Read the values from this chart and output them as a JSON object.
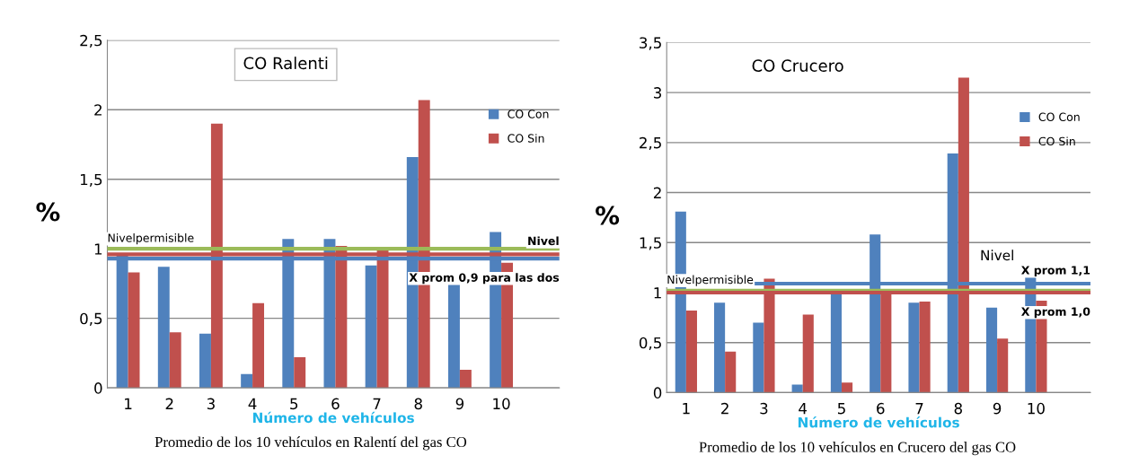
{
  "chart_data": [
    {
      "type": "bar",
      "title": "CO Ralenti",
      "xlabel": "Número de vehículos",
      "ylabel": "%",
      "categories": [
        "1",
        "2",
        "3",
        "4",
        "5",
        "6",
        "7",
        "8",
        "9",
        "10"
      ],
      "series": [
        {
          "name": "CO Con",
          "color": "#4f81bd",
          "values": [
            0.95,
            0.87,
            0.39,
            0.1,
            1.07,
            1.07,
            0.88,
            1.66,
            0.75,
            1.12
          ]
        },
        {
          "name": "CO Sin",
          "color": "#c0504d",
          "values": [
            0.83,
            0.4,
            1.9,
            0.61,
            0.22,
            1.02,
            0.99,
            2.07,
            0.13,
            0.9
          ]
        }
      ],
      "ylim": [
        0,
        2.5
      ],
      "yticks": [
        {
          "value": 0,
          "label": "0"
        },
        {
          "value": 0.5,
          "label": "0,5"
        },
        {
          "value": 1,
          "label": "1"
        },
        {
          "value": 1.5,
          "label": "1,5"
        },
        {
          "value": 2,
          "label": "2"
        },
        {
          "value": 2.5,
          "label": "2,5"
        }
      ],
      "ref_lines": [
        {
          "axis": "y",
          "value": 1.0,
          "label": "Nivelpermisible",
          "color": "#9bbb59"
        },
        {
          "axis": "y",
          "value": 0.96,
          "label": "Nivel",
          "color": "#c0504d"
        },
        {
          "axis": "y",
          "value": 0.93,
          "label": "X prom 0,9 para las dos",
          "color": "#4f81bd"
        }
      ],
      "annotations": [
        "Promedio de los 10 vehículos en Ralentí del gas CO"
      ],
      "grid": "y",
      "legend": "right"
    },
    {
      "type": "bar",
      "title": "CO Crucero",
      "xlabel": "Número de vehículos",
      "ylabel": "%",
      "categories": [
        "1",
        "2",
        "3",
        "4",
        "5",
        "6",
        "7",
        "8",
        "9",
        "10"
      ],
      "series": [
        {
          "name": "CO Con",
          "color": "#4f81bd",
          "values": [
            1.81,
            0.9,
            0.7,
            0.08,
            1.0,
            1.58,
            0.9,
            2.39,
            0.85,
            1.15
          ]
        },
        {
          "name": "CO Sin",
          "color": "#c0504d",
          "values": [
            0.82,
            0.41,
            1.14,
            0.78,
            0.1,
            1.0,
            0.91,
            3.15,
            0.54,
            0.92
          ]
        }
      ],
      "ylim": [
        0,
        3.5
      ],
      "yticks": [
        {
          "value": 0,
          "label": "0"
        },
        {
          "value": 0.5,
          "label": "0,5"
        },
        {
          "value": 1,
          "label": "1"
        },
        {
          "value": 1.5,
          "label": "1,5"
        },
        {
          "value": 2,
          "label": "2"
        },
        {
          "value": 2.5,
          "label": "2,5"
        },
        {
          "value": 3,
          "label": "3"
        },
        {
          "value": 3.5,
          "label": "3,5"
        }
      ],
      "ref_lines": [
        {
          "axis": "y",
          "value": 1.02,
          "label": "Nivelpermisible",
          "color": "#9bbb59"
        },
        {
          "axis": "y",
          "value": 1.09,
          "label": "X prom 1,1",
          "color": "#4f81bd"
        },
        {
          "axis": "y",
          "value": 1.0,
          "label": "X prom 1,0",
          "color": "#c0504d"
        }
      ],
      "annotations": [
        "Nivel",
        "Promedio de los 10 vehículos en Crucero del gas CO"
      ],
      "grid": "y",
      "legend": "right"
    }
  ]
}
